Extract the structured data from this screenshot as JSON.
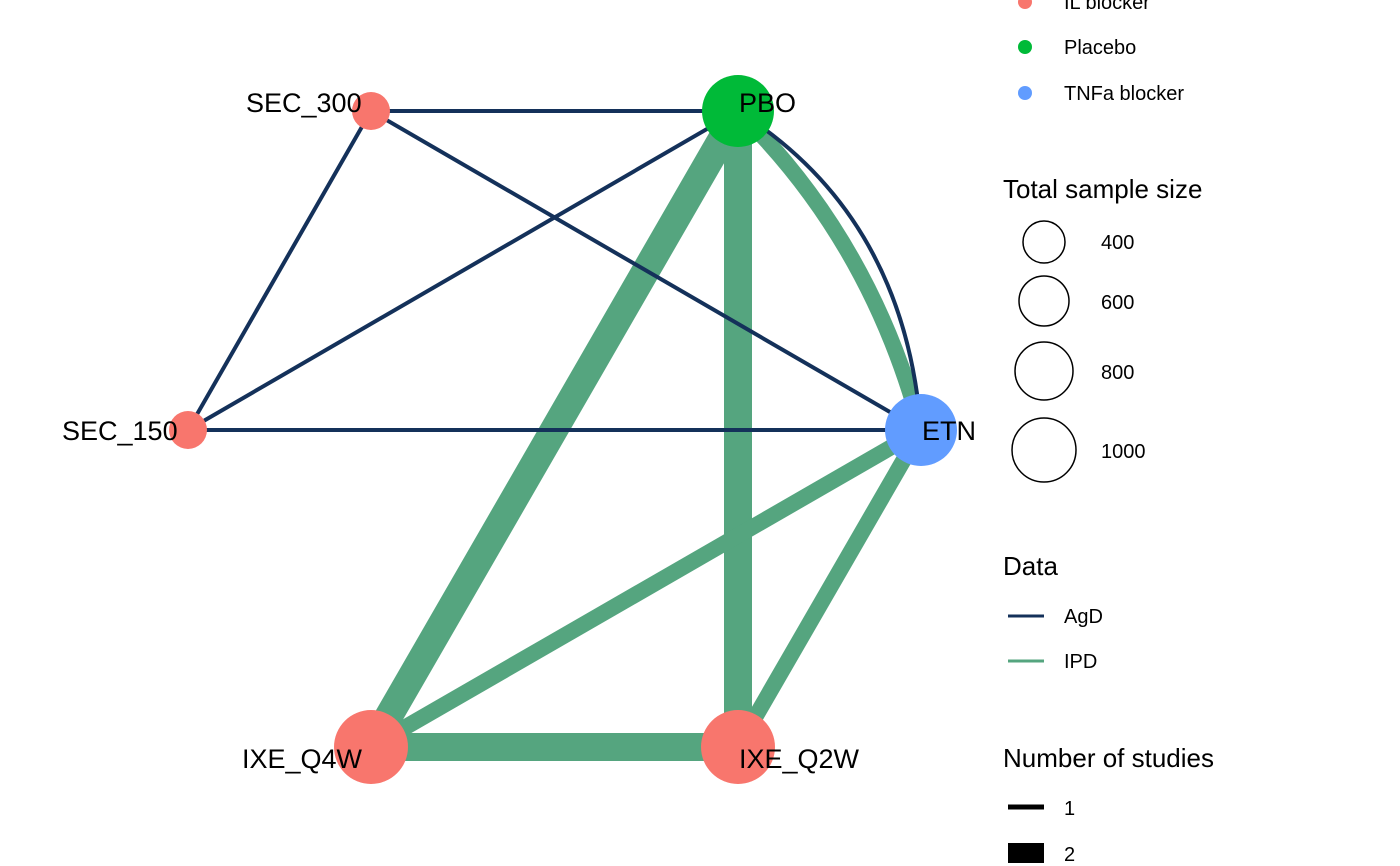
{
  "colors": {
    "agd": "#14315A",
    "ipd": "#55A57F",
    "il_blocker": "#F8766D",
    "placebo": "#00BA38",
    "tnfa_blocker": "#619CFF"
  },
  "nodes": [
    {
      "id": "SEC_300",
      "label": "SEC_300",
      "class": "IL blocker",
      "size": "small"
    },
    {
      "id": "PBO",
      "label": "PBO",
      "class": "Placebo",
      "size": "medium"
    },
    {
      "id": "SEC_150",
      "label": "SEC_150",
      "class": "IL blocker",
      "size": "small"
    },
    {
      "id": "ETN",
      "label": "ETN",
      "class": "TNFa blocker",
      "size": "medium"
    },
    {
      "id": "IXE_Q4W",
      "label": "IXE_Q4W",
      "class": "IL blocker",
      "size": "large"
    },
    {
      "id": "IXE_Q2W",
      "label": "IXE_Q2W",
      "class": "IL blocker",
      "size": "large"
    }
  ],
  "edges": [
    {
      "from": "SEC_300",
      "to": "PBO",
      "data": "AgD",
      "studies": 1
    },
    {
      "from": "SEC_300",
      "to": "SEC_150",
      "data": "AgD",
      "studies": 1
    },
    {
      "from": "SEC_300",
      "to": "ETN",
      "data": "AgD",
      "studies": 1
    },
    {
      "from": "SEC_150",
      "to": "PBO",
      "data": "AgD",
      "studies": 1
    },
    {
      "from": "SEC_150",
      "to": "ETN",
      "data": "AgD",
      "studies": 1
    },
    {
      "from": "PBO",
      "to": "ETN",
      "data": "AgD",
      "studies": 1,
      "curved": true
    },
    {
      "from": "PBO",
      "to": "ETN",
      "data": "IPD",
      "studies": 1,
      "curved": true
    },
    {
      "from": "PBO",
      "to": "IXE_Q4W",
      "data": "IPD",
      "studies": 2
    },
    {
      "from": "PBO",
      "to": "IXE_Q2W",
      "data": "IPD",
      "studies": 2
    },
    {
      "from": "ETN",
      "to": "IXE_Q4W",
      "data": "IPD",
      "studies": 1
    },
    {
      "from": "ETN",
      "to": "IXE_Q2W",
      "data": "IPD",
      "studies": 1
    },
    {
      "from": "IXE_Q4W",
      "to": "IXE_Q2W",
      "data": "IPD",
      "studies": 2
    }
  ],
  "legend": {
    "class_items": [
      {
        "label": "IL blocker",
        "color": "#F8766D"
      },
      {
        "label": "Placebo",
        "color": "#00BA38"
      },
      {
        "label": "TNFa blocker",
        "color": "#619CFF"
      }
    ],
    "sample_size": {
      "title": "Total sample size",
      "items": [
        "400",
        "600",
        "800",
        "1000"
      ]
    },
    "data": {
      "title": "Data",
      "items": [
        {
          "label": "AgD",
          "color": "#14315A"
        },
        {
          "label": "IPD",
          "color": "#55A57F"
        }
      ]
    },
    "studies": {
      "title": "Number of studies",
      "items": [
        "1",
        "2"
      ]
    }
  }
}
